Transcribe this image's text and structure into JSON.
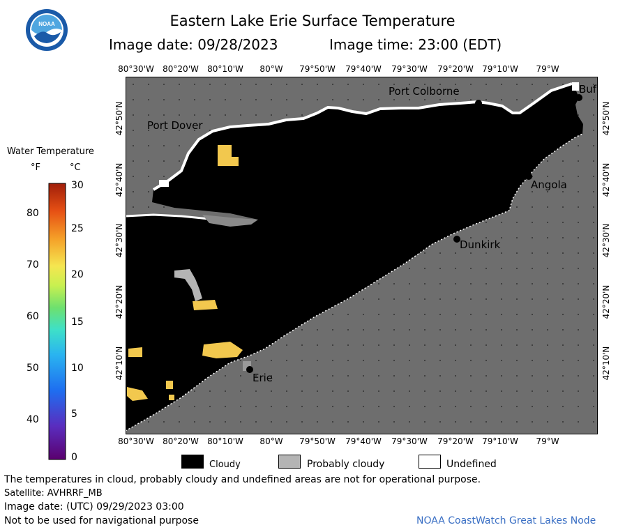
{
  "header": {
    "title": "Eastern Lake Erie Surface Temperature",
    "image_date": "Image date: 09/28/2023",
    "image_time": "Image time: 23:00 (EDT)"
  },
  "logo": {
    "text": "NOAA",
    "colors": {
      "outer": "#1a5aa8",
      "sky": "#4fa6e0",
      "bird": "#ffffff"
    }
  },
  "longitude_labels": [
    "80°30'W",
    "80°20'W",
    "80°10'W",
    "80°W",
    "79°50'W",
    "79°40'W",
    "79°30'W",
    "79°20'W",
    "79°10'W",
    "79°W"
  ],
  "latitude_labels": [
    "42°50'N",
    "42°40'N",
    "42°30'N",
    "42°20'N",
    "42°10'N"
  ],
  "places": {
    "port_colborne": "Port Colborne",
    "port_dover": "Port Dover",
    "buffalo": "Buf",
    "angola": "Angola",
    "dunkirk": "Dunkirk",
    "erie": "Erie"
  },
  "color_bar": {
    "title": "Water Temperature",
    "unit_f": "°F",
    "unit_c": "°C",
    "fahrenheit_ticks": [
      "80",
      "70",
      "60",
      "50",
      "40"
    ],
    "celsius_ticks": [
      "30",
      "25",
      "20",
      "15",
      "10",
      "5",
      "0"
    ],
    "min_c": 0,
    "max_c": 30
  },
  "key": {
    "cloudy": "Cloudy",
    "probably_cloudy": "Probably cloudy",
    "undefined": "Undefined",
    "colors": {
      "cloudy": "#000000",
      "probably_cloudy": "#b4b4b4",
      "undefined": "#ffffff"
    }
  },
  "colors": {
    "land": "#6e6e6e",
    "lake": "#000000",
    "patch": "#f2c84e"
  },
  "footer": {
    "disclaimer": "The temperatures in cloud, probably cloudy and undefined areas are not for operational purpose.",
    "satellite": "Satellite: AVHRRF_MB",
    "utc_date": "Image date: (UTC) 09/29/2023  03:00",
    "navigation": "Not to be used for navigational purpose",
    "credit": "NOAA CoastWatch Great Lakes Node"
  }
}
